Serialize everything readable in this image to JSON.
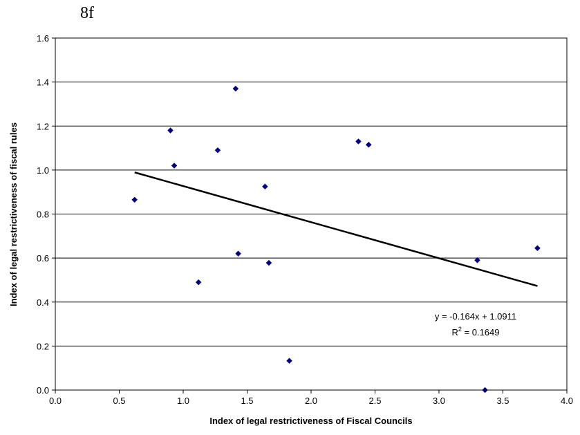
{
  "figure_label": "8f",
  "chart_data": {
    "type": "scatter",
    "xlabel": "Index of legal restrictiveness of Fiscal Councils",
    "ylabel": "Index of legal restrictiveness of fiscal rules",
    "xlim": [
      0,
      4
    ],
    "ylim": [
      0,
      1.6
    ],
    "x_ticks": [
      "0.0",
      "0.5",
      "1.0",
      "1.5",
      "2.0",
      "2.5",
      "3.0",
      "3.5",
      "4.0"
    ],
    "y_ticks": [
      "0.0",
      "0.2",
      "0.4",
      "0.6",
      "0.8",
      "1.0",
      "1.2",
      "1.4",
      "1.6"
    ],
    "grid": "horizontal",
    "marker_color": "#000080",
    "points": [
      {
        "x": 0.62,
        "y": 0.865
      },
      {
        "x": 0.9,
        "y": 1.18
      },
      {
        "x": 0.93,
        "y": 1.02
      },
      {
        "x": 1.12,
        "y": 0.49
      },
      {
        "x": 1.27,
        "y": 1.09
      },
      {
        "x": 1.41,
        "y": 1.37
      },
      {
        "x": 1.43,
        "y": 0.62
      },
      {
        "x": 1.64,
        "y": 0.925
      },
      {
        "x": 1.67,
        "y": 0.578
      },
      {
        "x": 1.83,
        "y": 0.133
      },
      {
        "x": 2.37,
        "y": 1.13
      },
      {
        "x": 2.45,
        "y": 1.115
      },
      {
        "x": 3.3,
        "y": 0.59
      },
      {
        "x": 3.36,
        "y": 0.0
      },
      {
        "x": 3.77,
        "y": 0.645
      }
    ],
    "trendline": {
      "slope": -0.164,
      "intercept": 1.0911,
      "x_range": [
        0.62,
        3.77
      ],
      "equation": "y = -0.164x + 1.0911",
      "r2_prefix": "R",
      "r2_sup": "2",
      "r2_suffix": " = 0.1649"
    }
  }
}
